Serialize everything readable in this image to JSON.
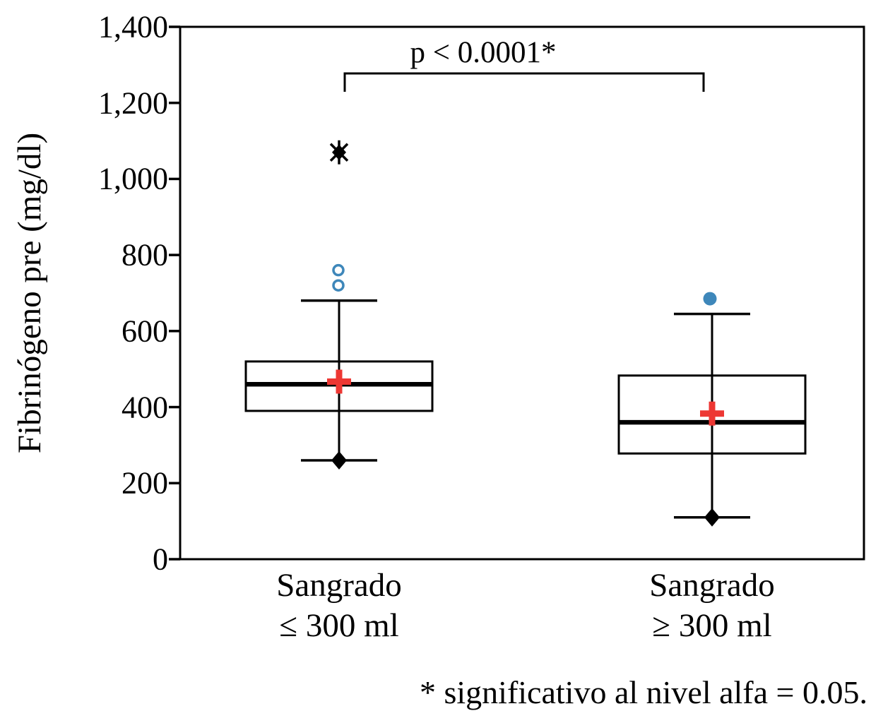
{
  "chart_data": {
    "type": "box",
    "title": "",
    "ylabel": "Fibrinógeno pre (mg/dl)",
    "xlabel": "",
    "ylim": [
      0,
      1400
    ],
    "yticks": [
      0,
      200,
      400,
      600,
      800,
      1000,
      1200,
      1400
    ],
    "ytick_labels": [
      "0",
      "200",
      "400",
      "600",
      "800",
      "1,000",
      "1,200",
      "1,400"
    ],
    "grid": false,
    "legend": null,
    "categories": [
      "Sangrado ≤ 300 ml",
      "Sangrado ≥ 300 ml"
    ],
    "groups": [
      {
        "label_line1": "Sangrado",
        "label_line2": "≤ 300 ml",
        "stats": {
          "whisker_min": 260,
          "q1": 390,
          "median": 460,
          "mean": 467,
          "q3": 520,
          "whisker_max": 680
        },
        "min_marker": "diamond-filled-black",
        "outliers": [
          {
            "value": 720,
            "marker": "circle-open-blue"
          },
          {
            "value": 760,
            "marker": "circle-open-blue"
          },
          {
            "value": 1070,
            "marker": "star-extreme-black"
          }
        ]
      },
      {
        "label_line1": "Sangrado",
        "label_line2": "≥ 300 ml",
        "stats": {
          "whisker_min": 110,
          "q1": 278,
          "median": 360,
          "mean": 383,
          "q3": 483,
          "whisker_max": 645
        },
        "min_marker": "diamond-filled-black",
        "outliers": [
          {
            "value": 685,
            "marker": "circle-filled-blue"
          }
        ]
      }
    ],
    "annotation": {
      "text": "p < 0.0001*",
      "between_categories": [
        "Sangrado ≤ 300 ml",
        "Sangrado ≥ 300 ml"
      ]
    },
    "footnote": "* significativo al nivel alfa = 0.05.",
    "colors": {
      "line_black": "#000000",
      "mean_marker_red": "#ed3733",
      "outlier_blue": "#3e87ba",
      "background": "#ffffff"
    }
  }
}
